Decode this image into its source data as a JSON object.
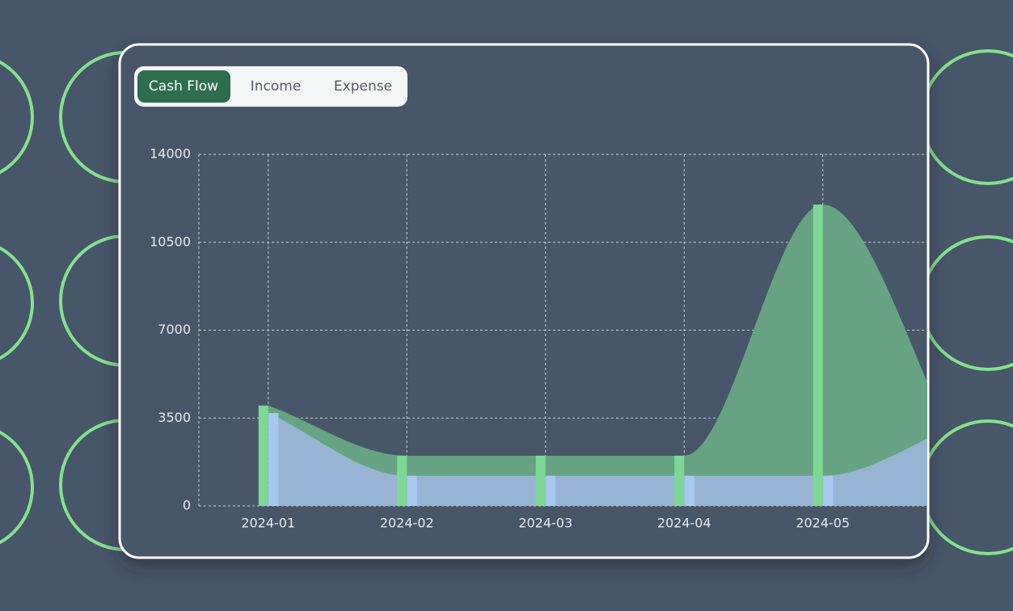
{
  "tabs": [
    "Cash Flow",
    "Income",
    "Expense"
  ],
  "chart_data": {
    "type": "area",
    "categories": [
      "2024-01",
      "2024-02",
      "2024-03",
      "2024-04",
      "2024-05",
      null
    ],
    "series": [
      {
        "color": "#7dd894",
        "area_color": "#67a382",
        "values": [
          4000,
          2000,
          2000,
          2000,
          12000,
          2000
        ]
      },
      {
        "color": "#a9c8f0",
        "area_color": "#97b5d2",
        "values": [
          3700,
          1200,
          1200,
          1200,
          1200,
          3300
        ]
      }
    ],
    "ylim": [
      0,
      14000
    ],
    "yticks": [
      0,
      3500,
      7000,
      10500,
      14000
    ],
    "grid": true
  }
}
